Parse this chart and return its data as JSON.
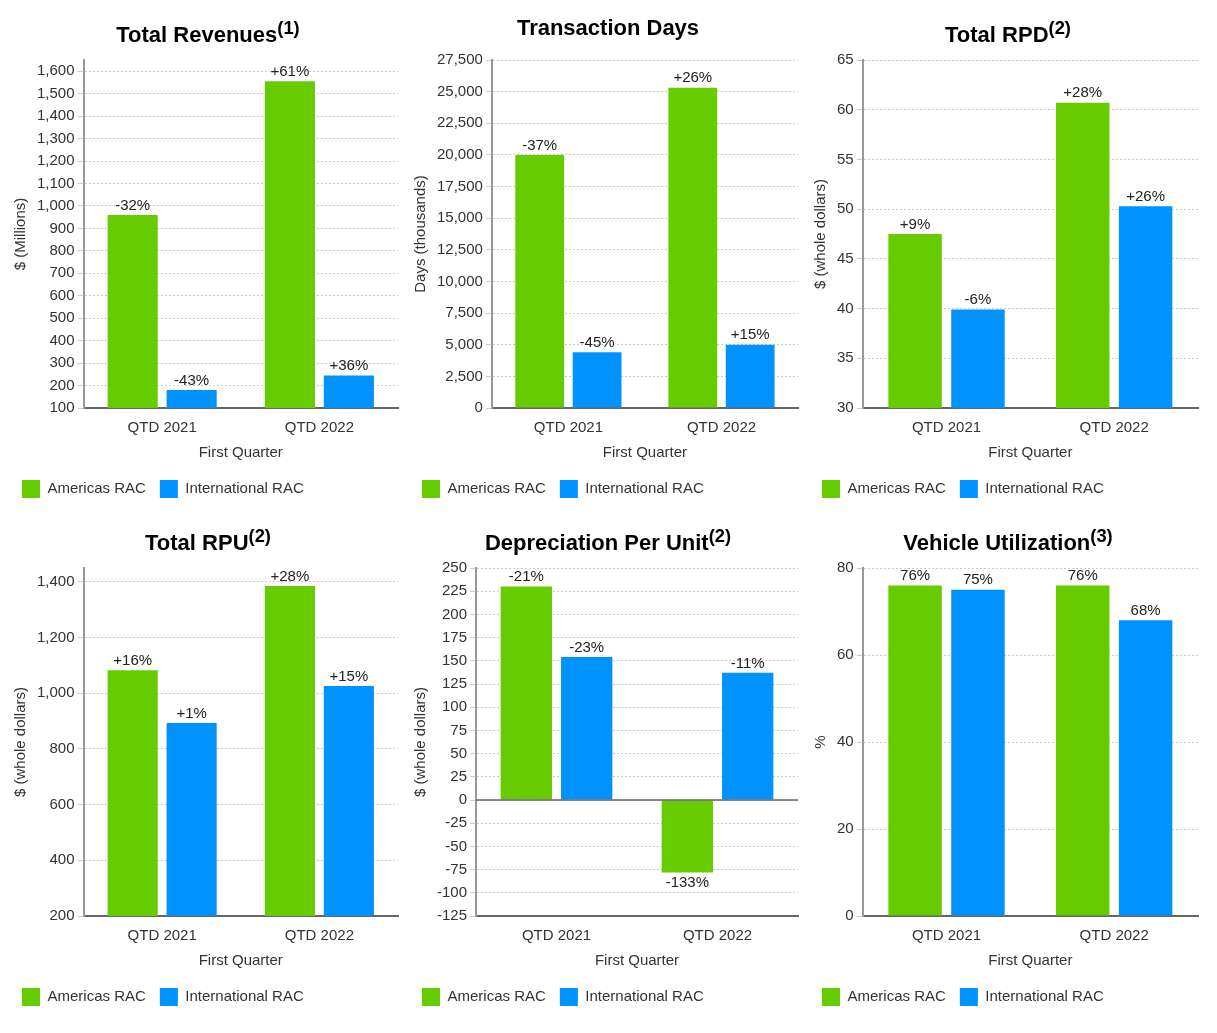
{
  "chart_data": [
    {
      "type": "bar",
      "title": "Total Revenues$^{(1)}$",
      "ylabel": "$ (Millions)",
      "xlabel": "First Quarter",
      "categories": [
        "QTD 2021",
        "QTD 2022"
      ],
      "series": [
        {
          "name": "Americas RAC",
          "color": "#66cc00",
          "values": [
            960,
            1555
          ]
        },
        {
          "name": "International RAC",
          "color": "#0092ff",
          "values": [
            180,
            245
          ]
        }
      ],
      "annotations": [
        {
          "text": "-32%",
          "x": "QTD 2021",
          "y": 960
        },
        {
          "text": "+61%",
          "x": "QTD 2022",
          "y": 1555
        },
        {
          "text": "-43%",
          "x": "QTD 2021",
          "y": 180
        },
        {
          "text": "+36%",
          "x": "QTD 2022",
          "y": 245
        }
      ],
      "ylim": [
        100,
        1650
      ],
      "yticks": [
        100,
        200,
        300,
        400,
        500,
        600,
        700,
        800,
        900,
        {
          "value": 1000,
          "label": "1,000"
        },
        {
          "value": 1100,
          "label": "1,100"
        },
        {
          "value": 1200,
          "label": "1,200"
        },
        {
          "value": 1300,
          "label": "1,300"
        },
        {
          "value": 1400,
          "label": "1,400"
        },
        {
          "value": 1500,
          "label": "1,500"
        },
        {
          "value": 1600,
          "label": "1,600"
        }
      ],
      "grid": "y",
      "legend": "bottom"
    },
    {
      "type": "bar",
      "title": "Transaction Days",
      "ylabel": "Days (thousands)",
      "xlabel": "First Quarter",
      "categories": [
        "QTD 2021",
        "QTD 2022"
      ],
      "series": [
        {
          "name": "Americas RAC",
          "color": "#66cc00",
          "values": [
            20000,
            25300
          ]
        },
        {
          "name": "International RAC",
          "color": "#0092ff",
          "values": [
            4400,
            5000
          ]
        }
      ],
      "annotations": [
        {
          "text": "-37%",
          "x": "QTD 2021",
          "y": 20000
        },
        {
          "text": "+26%",
          "x": "QTD 2022",
          "y": 25300
        },
        {
          "text": "-45%",
          "x": "QTD 2021",
          "y": 4400
        },
        {
          "text": "+15%",
          "x": "QTD 2022",
          "y": 5000
        }
      ],
      "ylim": [
        0,
        27500
      ],
      "yticks": [
        0,
        {
          "value": 2500,
          "label": "2,500"
        },
        {
          "value": 5000,
          "label": "5,000"
        },
        {
          "value": 7500,
          "label": "7,500"
        },
        {
          "value": 10000,
          "label": "10,000"
        },
        {
          "value": 12500,
          "label": "12,500"
        },
        {
          "value": 15000,
          "label": "15,000"
        },
        {
          "value": 17500,
          "label": "17,500"
        },
        {
          "value": 20000,
          "label": "20,000"
        },
        {
          "value": 22500,
          "label": "22,500"
        },
        {
          "value": 25000,
          "label": "25,000"
        },
        {
          "value": 27500,
          "label": "27,500"
        }
      ],
      "grid": "y",
      "legend": "bottom"
    },
    {
      "type": "bar",
      "title": "Total RPD$^{(2)}$",
      "ylabel": "$ (whole dollars)",
      "xlabel": "First Quarter",
      "categories": [
        "QTD 2021",
        "QTD 2022"
      ],
      "series": [
        {
          "name": "Americas RAC",
          "color": "#66cc00",
          "values": [
            47.5,
            60.7
          ]
        },
        {
          "name": "International RAC",
          "color": "#0092ff",
          "values": [
            39.9,
            50.3
          ]
        }
      ],
      "annotations": [
        {
          "text": "+9%",
          "x": "QTD 2021",
          "y": 47.5
        },
        {
          "text": "+28%",
          "x": "QTD 2022",
          "y": 60.7
        },
        {
          "text": "-6%",
          "x": "QTD 2021",
          "y": 39.9
        },
        {
          "text": "+26%",
          "x": "QTD 2022",
          "y": 50.3
        }
      ],
      "ylim": [
        30,
        65
      ],
      "yticks": [
        30,
        35,
        40,
        45,
        50,
        55,
        60,
        65
      ],
      "grid": "y",
      "legend": "bottom"
    },
    {
      "type": "bar",
      "title": "Total RPU$^{(2)}$",
      "ylabel": "$ (whole dollars)",
      "xlabel": "First Quarter",
      "categories": [
        "QTD 2021",
        "QTD 2022"
      ],
      "series": [
        {
          "name": "Americas RAC",
          "color": "#66cc00",
          "values": [
            1083,
            1385
          ]
        },
        {
          "name": "International RAC",
          "color": "#0092ff",
          "values": [
            893,
            1026
          ]
        }
      ],
      "annotations": [
        {
          "text": "+16%",
          "x": "QTD 2021",
          "y": 1083
        },
        {
          "text": "+28%",
          "x": "QTD 2022",
          "y": 1385
        },
        {
          "text": "+1%",
          "x": "QTD 2021",
          "y": 893
        },
        {
          "text": "+15%",
          "x": "QTD 2022",
          "y": 1026
        }
      ],
      "ylim": [
        200,
        1450
      ],
      "yticks": [
        200,
        400,
        600,
        800,
        {
          "value": 1000,
          "label": "1,000"
        },
        {
          "value": 1200,
          "label": "1,200"
        },
        {
          "value": 1400,
          "label": "1,400"
        }
      ],
      "grid": "y",
      "legend": "bottom"
    },
    {
      "type": "bar",
      "title": "Depreciation Per Unit$^{(2)}$",
      "ylabel": "$ (whole dollars)",
      "xlabel": "First Quarter",
      "categories": [
        "QTD 2021",
        "QTD 2022"
      ],
      "series": [
        {
          "name": "Americas RAC",
          "color": "#66cc00",
          "values": [
            230,
            -78
          ]
        },
        {
          "name": "International RAC",
          "color": "#0092ff",
          "values": [
            154,
            137
          ]
        }
      ],
      "annotations": [
        {
          "text": "-21%",
          "x": "QTD 2021",
          "y": 230
        },
        {
          "text": "-133%",
          "x": "QTD 2022",
          "y": -78
        },
        {
          "text": "-23%",
          "x": "QTD 2021",
          "y": 154
        },
        {
          "text": "-11%",
          "x": "QTD 2022",
          "y": 137
        }
      ],
      "ref_lines": [
        {
          "axis": "y",
          "value": 0,
          "color": "#666666"
        }
      ],
      "ylim": [
        -125,
        250
      ],
      "yticks": [
        -125,
        -100,
        -75,
        -50,
        -25,
        0,
        25,
        50,
        75,
        100,
        125,
        150,
        175,
        200,
        225,
        250
      ],
      "grid": "y",
      "legend": "bottom"
    },
    {
      "type": "bar",
      "title": "Vehicle Utilization$^{(3)}$",
      "ylabel": "%",
      "xlabel": "First Quarter",
      "categories": [
        "QTD 2021",
        "QTD 2022"
      ],
      "series": [
        {
          "name": "Americas RAC",
          "color": "#66cc00",
          "values": [
            76,
            76
          ],
          "value_labels": [
            "76%",
            "76%"
          ]
        },
        {
          "name": "International RAC",
          "color": "#0092ff",
          "values": [
            75,
            68
          ],
          "value_labels": [
            "75%",
            "68%"
          ]
        }
      ],
      "ylim": [
        0,
        80
      ],
      "yticks": [
        0,
        20,
        40,
        60,
        80
      ],
      "grid": "y",
      "legend": "bottom"
    }
  ]
}
